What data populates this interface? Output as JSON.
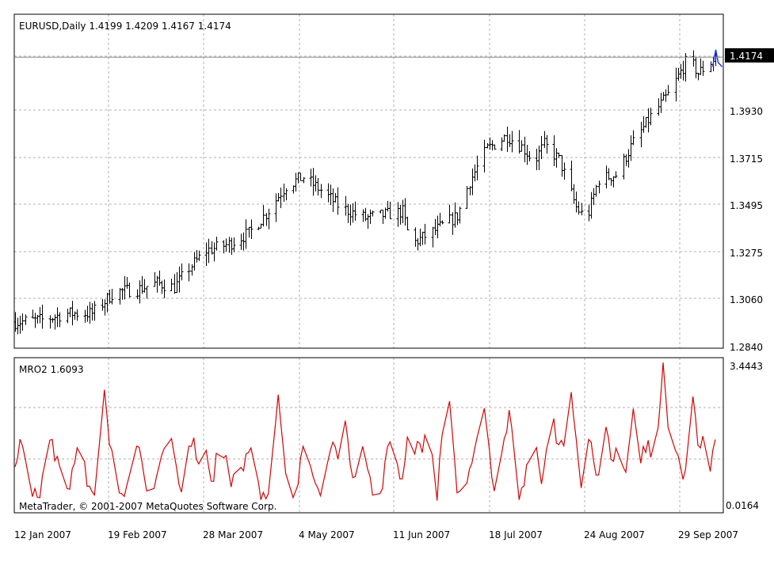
{
  "window": {
    "symbol_line": "EURUSD,Daily  1.4199 1.4209 1.4167 1.4174",
    "current_price_tag": "1.4174",
    "indicator_label": "MRO2 1.6093",
    "copyright": "MetaTrader, © 2001-2007 MetaQuotes Software Corp."
  },
  "price_axis": {
    "ticks": [
      "1.3930",
      "1.3715",
      "1.3495",
      "1.3275",
      "1.3060",
      "1.2840"
    ]
  },
  "indicator_axis": {
    "ticks": [
      "3.4443",
      "0.0164"
    ]
  },
  "time_axis": {
    "ticks": [
      "12 Jan 2007",
      "19 Feb 2007",
      "28 Mar 2007",
      "4 May 2007",
      "11 Jun 2007",
      "18 Jul 2007",
      "24 Aug 2007",
      "29 Sep 2007"
    ]
  },
  "colors": {
    "bars": "#000000",
    "indicator": "#dd0000",
    "grid": "#b0b0b0",
    "frame": "#000000",
    "price_tag_bg": "#000000",
    "price_tag_text": "#ffffff",
    "last_bar_accent": "#1a3cff"
  },
  "chart_data": [
    {
      "type": "ohlc",
      "symbol": "EURUSD",
      "timeframe": "Daily",
      "last_ohlc": {
        "open": 1.4199,
        "high": 1.4209,
        "low": 1.4167,
        "close": 1.4174
      },
      "ylim": [
        1.284,
        1.444
      ],
      "x_tick_dates": [
        "12 Jan 2007",
        "19 Feb 2007",
        "28 Mar 2007",
        "4 May 2007",
        "11 Jun 2007",
        "18 Jul 2007",
        "24 Aug 2007",
        "29 Sep 2007"
      ],
      "anchor_closes": [
        [
          "2007-01-01",
          1.295
        ],
        [
          "2007-01-12",
          1.296
        ],
        [
          "2007-01-22",
          1.299
        ],
        [
          "2007-02-01",
          1.299
        ],
        [
          "2007-02-10",
          1.309
        ],
        [
          "2007-02-19",
          1.31
        ],
        [
          "2007-02-27",
          1.313
        ],
        [
          "2007-03-06",
          1.311
        ],
        [
          "2007-03-12",
          1.32
        ],
        [
          "2007-03-19",
          1.328
        ],
        [
          "2007-03-28",
          1.331
        ],
        [
          "2007-04-05",
          1.336
        ],
        [
          "2007-04-12",
          1.345
        ],
        [
          "2007-04-20",
          1.358
        ],
        [
          "2007-04-27",
          1.362
        ],
        [
          "2007-05-04",
          1.356
        ],
        [
          "2007-05-12",
          1.348
        ],
        [
          "2007-05-22",
          1.343
        ],
        [
          "2007-06-01",
          1.345
        ],
        [
          "2007-06-06",
          1.346
        ],
        [
          "2007-06-08",
          1.337
        ],
        [
          "2007-06-11",
          1.332
        ],
        [
          "2007-06-20",
          1.338
        ],
        [
          "2007-06-28",
          1.344
        ],
        [
          "2007-07-03",
          1.36
        ],
        [
          "2007-07-10",
          1.375
        ],
        [
          "2007-07-18",
          1.381
        ],
        [
          "2007-07-24",
          1.376
        ],
        [
          "2007-07-29",
          1.369
        ],
        [
          "2007-08-02",
          1.377
        ],
        [
          "2007-08-08",
          1.37
        ],
        [
          "2007-08-15",
          1.348
        ],
        [
          "2007-08-19",
          1.342
        ],
        [
          "2007-08-24",
          1.361
        ],
        [
          "2007-08-31",
          1.363
        ],
        [
          "2007-09-07",
          1.378
        ],
        [
          "2007-09-14",
          1.39
        ],
        [
          "2007-09-21",
          1.4
        ],
        [
          "2007-09-29",
          1.417
        ],
        [
          "2007-10-03",
          1.41
        ],
        [
          "2007-10-07",
          1.414
        ],
        [
          "2007-10-10",
          1.4174
        ]
      ]
    },
    {
      "type": "line",
      "name": "MRO2",
      "last_value": 1.6093,
      "ylim": [
        0.0164,
        3.4443
      ],
      "note_peaks": [
        [
          "2007-01-18",
          1.3
        ],
        [
          "2007-02-06",
          2.8
        ],
        [
          "2007-03-05",
          1.6
        ],
        [
          "2007-03-18",
          1.7
        ],
        [
          "2007-04-01",
          1.25
        ],
        [
          "2007-04-17",
          2.6
        ],
        [
          "2007-05-01",
          0.8
        ],
        [
          "2007-05-14",
          2.0
        ],
        [
          "2007-06-09",
          2.1
        ],
        [
          "2007-06-16",
          2.2
        ],
        [
          "2007-06-24",
          3.2
        ],
        [
          "2007-07-09",
          2.4
        ],
        [
          "2007-07-19",
          2.4
        ],
        [
          "2007-08-05",
          2.6
        ],
        [
          "2007-08-13",
          2.8
        ],
        [
          "2007-08-27",
          2.0
        ],
        [
          "2007-09-07",
          2.3
        ],
        [
          "2007-09-19",
          3.4
        ],
        [
          "2007-10-01",
          2.7
        ],
        [
          "2007-10-10",
          1.61
        ]
      ]
    }
  ]
}
